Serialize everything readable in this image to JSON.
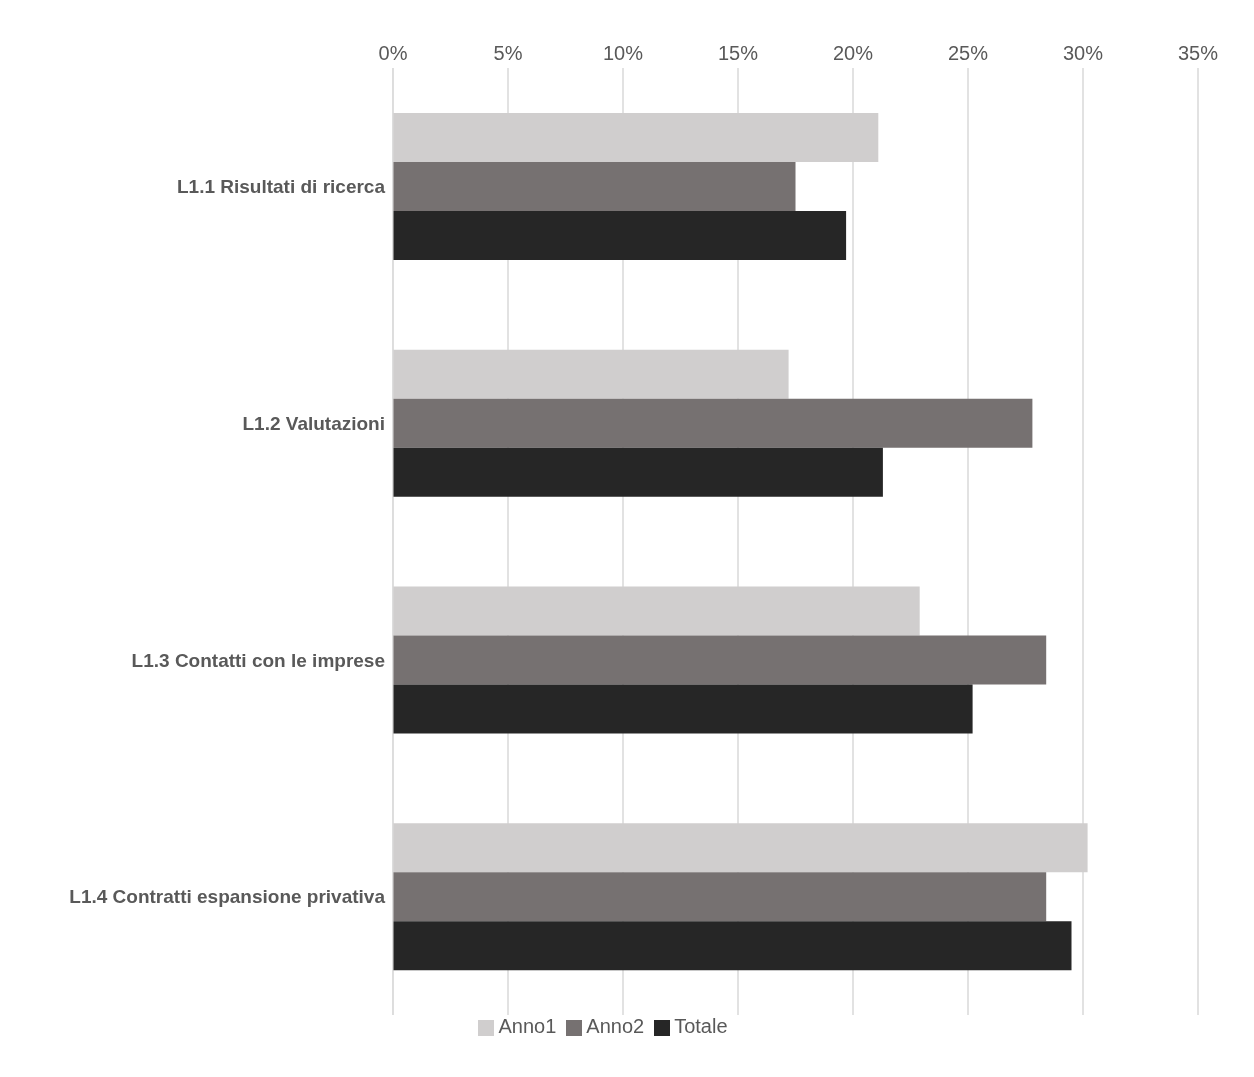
{
  "chart_data": {
    "type": "bar",
    "orientation": "horizontal",
    "categories": [
      "L1.1 Risultati di ricerca",
      "L1.2 Valutazioni",
      "L1.3 Contatti con le imprese",
      "L1.4 Contratti espansione privativa"
    ],
    "series": [
      {
        "name": "Anno1",
        "color": "#d0cece",
        "values": [
          21.1,
          17.2,
          22.9,
          30.2
        ]
      },
      {
        "name": "Anno2",
        "color": "#767171",
        "values": [
          17.5,
          27.8,
          28.4,
          28.4
        ]
      },
      {
        "name": "Totale",
        "color": "#262626",
        "values": [
          19.7,
          21.3,
          25.2,
          29.5
        ]
      }
    ],
    "xlim": [
      0,
      35
    ],
    "xticks": [
      {
        "value": 0,
        "label": "0%"
      },
      {
        "value": 5,
        "label": "5%"
      },
      {
        "value": 10,
        "label": "10%"
      },
      {
        "value": 15,
        "label": "15%"
      },
      {
        "value": 20,
        "label": "20%"
      },
      {
        "value": 25,
        "label": "25%"
      },
      {
        "value": 30,
        "label": "30%"
      },
      {
        "value": 35,
        "label": "35%"
      }
    ],
    "grid": "x",
    "legend": "bottom"
  }
}
